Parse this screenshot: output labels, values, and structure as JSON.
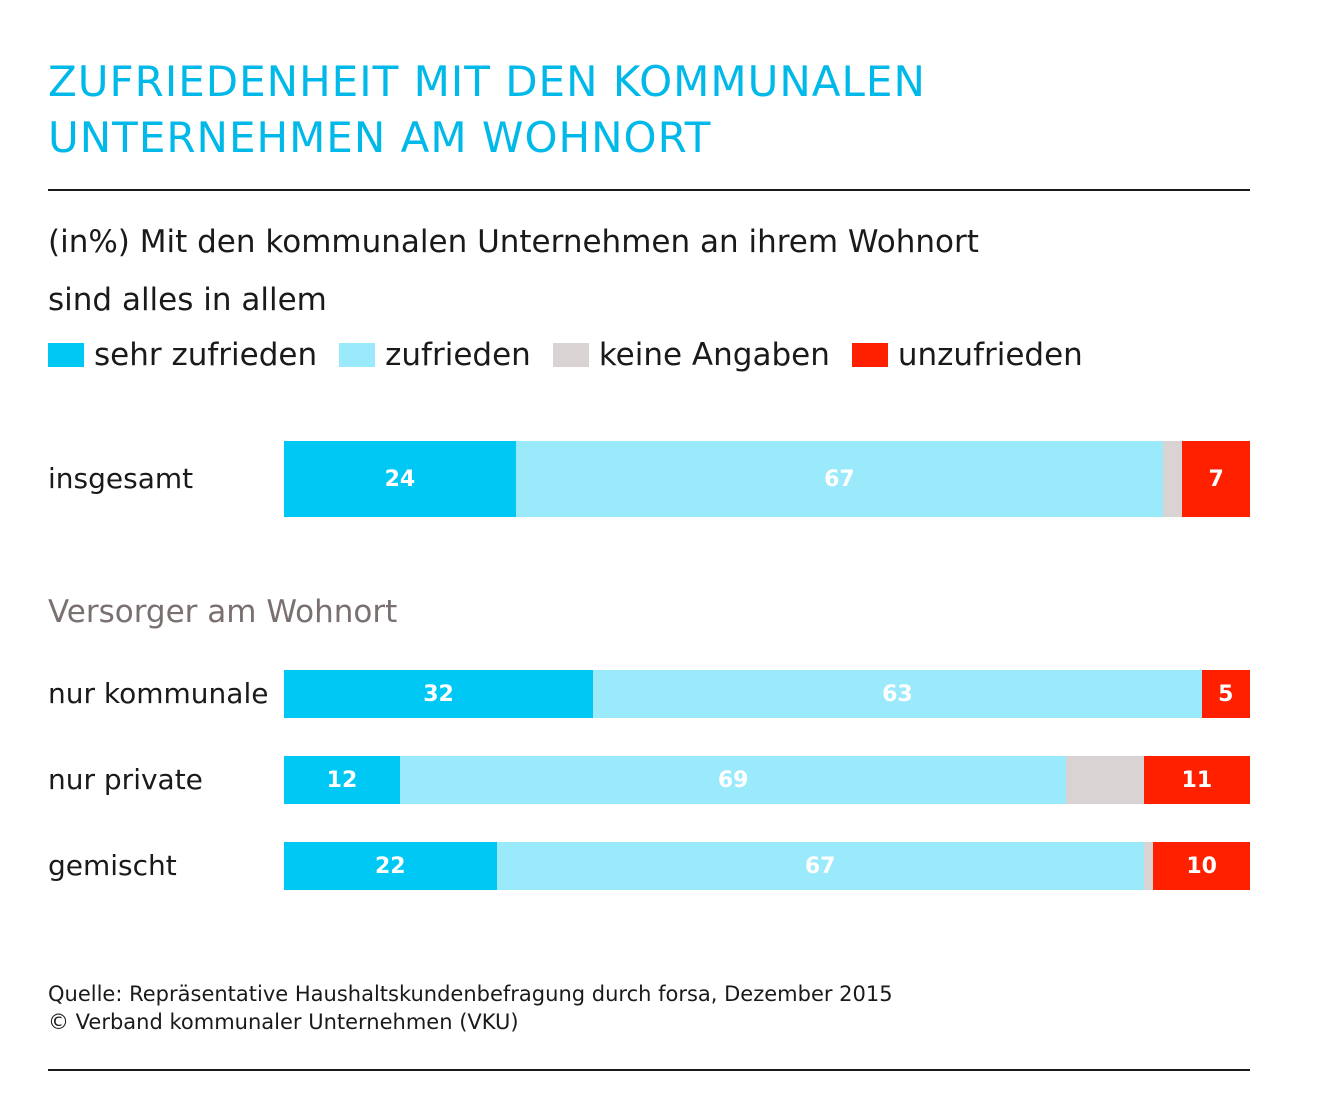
{
  "title_line1": "ZUFRIEDENHEIT MIT DEN KOMMUNALEN",
  "title_line2": "UNTERNEHMEN AM WOHNORT",
  "subtitle_line1": "(in%) Mit den kommunalen Unternehmen an ihrem Wohnort",
  "subtitle_line2": "sind alles in allem",
  "section_label": "Versorger am Wohnort",
  "source_line1": "Quelle: Repräsentative Haushaltskundenbefragung durch forsa, Dezember 2015",
  "source_line2": "© Verband kommunaler Unternehmen (VKU)",
  "chart_data": {
    "type": "bar",
    "orientation": "horizontal",
    "stacked": true,
    "unit": "%",
    "title": "ZUFRIEDENHEIT MIT DEN KOMMUNALEN UNTERNEHMEN AM WOHNORT",
    "categories": [
      "insgesamt",
      "nur kommunale",
      "nur private",
      "gemischt"
    ],
    "series": [
      {
        "name": "sehr zufrieden",
        "color": "#00c8f5",
        "values": [
          24,
          32,
          12,
          22
        ]
      },
      {
        "name": "zufrieden",
        "color": "#9beafb",
        "values": [
          67,
          63,
          69,
          67
        ]
      },
      {
        "name": "keine Angaben",
        "color": "#d9d3d3",
        "values": [
          2,
          0,
          8,
          1
        ]
      },
      {
        "name": "unzufrieden",
        "color": "#ff2000",
        "values": [
          7,
          5,
          11,
          10
        ]
      }
    ],
    "data_labels": [
      [
        "24",
        "67",
        "",
        "7"
      ],
      [
        "32",
        "63",
        "",
        "5"
      ],
      [
        "12",
        "69",
        "",
        "11"
      ],
      [
        "22",
        "67",
        "",
        "10"
      ]
    ],
    "xlim": [
      0,
      100
    ],
    "legend_position": "top"
  }
}
